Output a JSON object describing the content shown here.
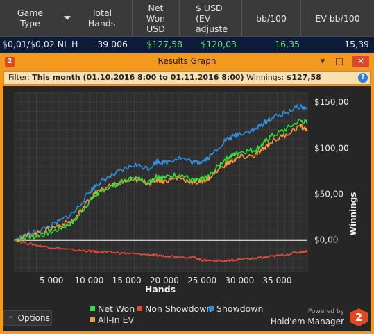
{
  "table": {
    "headers": [
      {
        "label": "Game Type"
      },
      {
        "label": "Total Hands"
      },
      {
        "label": "Net Won USD"
      },
      {
        "label": "$ USD (EV adjuste"
      },
      {
        "label": "bb/100"
      },
      {
        "label": "EV bb/100"
      }
    ],
    "sort_icon": "triangle-down-icon",
    "row": [
      "$0,01/$0,02 NL H",
      "39 006",
      "$127,58",
      "$120,03",
      "16,35",
      "15,39"
    ],
    "colors": {
      "money": "#6fe07a",
      "text": "#e8e8e8"
    }
  },
  "window": {
    "title": "Results Graph",
    "app_logo": "2",
    "minimize": "▾",
    "maximize": "□",
    "close": "✕",
    "filter_label": "Filter:",
    "filter_value": "This month (01.10.2016 8:00 to 01.11.2016 8:00)",
    "winnings_label": "Winnings:",
    "winnings_value": "$127,58",
    "help": "?"
  },
  "chart_data": {
    "type": "line",
    "xlabel": "Hands",
    "ylabel": "Winnings",
    "xlim": [
      0,
      39006
    ],
    "ylim": [
      -35,
      160
    ],
    "x_ticks": [
      5000,
      10000,
      15000,
      20000,
      25000,
      30000,
      35000
    ],
    "x_tick_labels": [
      "5 000",
      "10 000",
      "15 000",
      "20 000",
      "25 000",
      "30 000",
      "35 000"
    ],
    "y_ticks": [
      0,
      50,
      100,
      150
    ],
    "y_tick_labels": [
      "$0,00",
      "$50,00",
      "$100,00",
      "$150,00"
    ],
    "grid": true,
    "legend": "bottom",
    "x": [
      0,
      2000,
      4000,
      6000,
      8000,
      10000,
      11000,
      12000,
      14000,
      16000,
      18000,
      19000,
      20000,
      22000,
      24000,
      25000,
      26000,
      28000,
      29000,
      30000,
      32000,
      33000,
      34000,
      36000,
      38000,
      39006
    ],
    "series": [
      {
        "name": "Net Won",
        "color": "#2ee03a",
        "values": [
          0,
          3,
          6,
          12,
          20,
          42,
          50,
          55,
          62,
          68,
          63,
          70,
          68,
          72,
          64,
          66,
          70,
          88,
          92,
          96,
          98,
          104,
          112,
          120,
          130,
          127.58
        ]
      },
      {
        "name": "Non Showdown",
        "color": "#e84a3a",
        "values": [
          0,
          -4,
          -7,
          -9,
          -11,
          -12,
          -13,
          -13,
          -14,
          -15,
          -16,
          -17,
          -17,
          -18,
          -19,
          -22,
          -22,
          -23,
          -22,
          -21,
          -20,
          -19,
          -18,
          -16,
          -13,
          -12
        ]
      },
      {
        "name": "Showdown",
        "color": "#2f8fe0",
        "values": [
          0,
          6,
          12,
          20,
          30,
          52,
          60,
          66,
          74,
          82,
          78,
          86,
          84,
          90,
          84,
          86,
          90,
          108,
          112,
          116,
          120,
          126,
          132,
          138,
          146,
          142
        ]
      },
      {
        "name": "All-In EV",
        "color": "#f39a3a",
        "values": [
          0,
          5,
          10,
          16,
          22,
          44,
          52,
          56,
          62,
          66,
          62,
          66,
          64,
          68,
          62,
          64,
          68,
          82,
          86,
          90,
          92,
          98,
          106,
          114,
          124,
          120.03
        ]
      }
    ]
  },
  "footer": {
    "options_label": "Options",
    "options_icon": "caret-up-icon",
    "powered_by": "Powered by",
    "brand": "Hold'em Manager",
    "brand_logo": "2"
  }
}
